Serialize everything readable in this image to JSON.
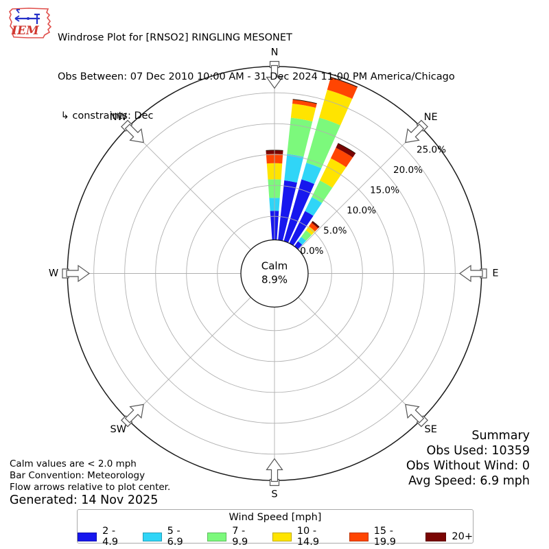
{
  "header": {
    "logo_text": "IEM",
    "title": "Windrose Plot for [RNSO2] RINGLING MESONET",
    "subtitle": "Obs Between: 07 Dec 2010 10:00 AM - 31 Dec 2024 11:00 PM America/Chicago",
    "constraints": " ↳ constraints: Dec"
  },
  "chart_data": {
    "type": "bar",
    "variant": "windrose-polar-stacked",
    "units": "percent",
    "legend_position": "bottom",
    "grid": "on",
    "compass_labels": [
      "N",
      "NE",
      "E",
      "SE",
      "S",
      "SW",
      "W",
      "NW"
    ],
    "ring_percent": [
      5,
      10,
      15,
      20,
      25
    ],
    "ring_label_percent": [
      0,
      5,
      10,
      15,
      20,
      25
    ],
    "rmax_percent": 29.3,
    "calm": {
      "line1": "Calm",
      "line2": "8.9%"
    },
    "speed_bins": [
      {
        "label": "2 - 4.9",
        "color": "#1717EE"
      },
      {
        "label": "5 - 6.9",
        "color": "#30D5F7"
      },
      {
        "label": "7 - 9.9",
        "color": "#7CF97C"
      },
      {
        "label": "10 - 14.9",
        "color": "#FFE400"
      },
      {
        "label": "15 - 19.9",
        "color": "#FF4502"
      },
      {
        "label": "20+",
        "color": "#7A0503"
      }
    ],
    "bars": [
      {
        "dir_deg": 0,
        "segments": [
          5.9,
          2.1,
          3.0,
          2.6,
          1.5,
          0.6
        ]
      },
      {
        "dir_deg": 10,
        "segments": [
          10.9,
          4.3,
          5.9,
          2.3,
          0.7,
          0.0
        ]
      },
      {
        "dir_deg": 20,
        "segments": [
          11.6,
          2.8,
          7.6,
          4.7,
          2.0,
          0.1
        ]
      },
      {
        "dir_deg": 30,
        "segments": [
          7.0,
          2.5,
          3.0,
          4.0,
          1.9,
          0.8
        ]
      },
      {
        "dir_deg": 40,
        "segments": [
          2.2,
          0.9,
          1.3,
          0.8,
          0.7,
          0.3
        ]
      }
    ]
  },
  "legend": {
    "title": "Wind Speed [mph]"
  },
  "summary": {
    "title": "Summary",
    "lines": [
      "Obs Used: 10359",
      "Obs Without Wind: 0",
      "Avg Speed: 6.9 mph"
    ]
  },
  "footer": {
    "lines": [
      "Calm values are < 2.0 mph",
      "Bar Convention: Meteorology",
      "Flow arrows relative to plot center."
    ],
    "generated": "Generated: 14 Nov 2025"
  }
}
